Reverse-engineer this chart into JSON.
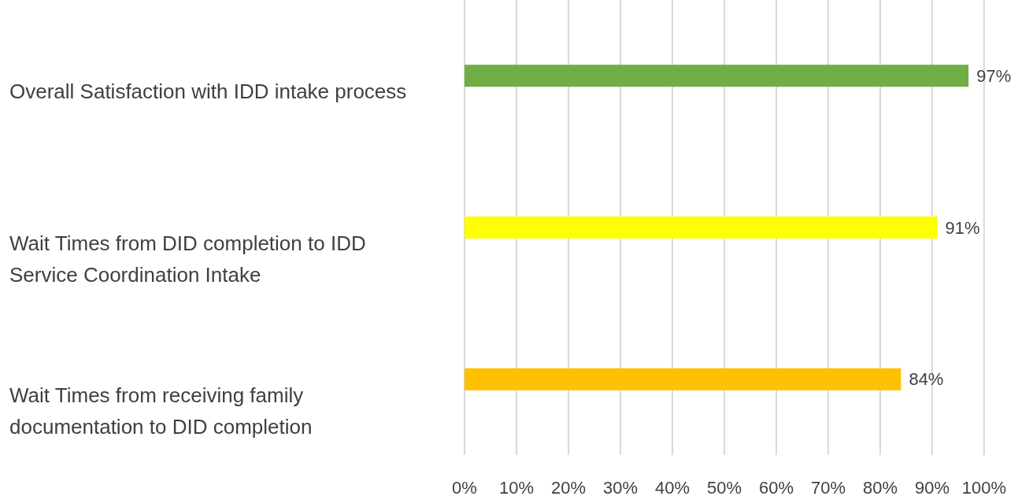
{
  "chart_data": {
    "type": "bar",
    "orientation": "horizontal",
    "categories": [
      "Overall Satisfaction with IDD intake process",
      "Wait Times from DID completion to IDD Service Coordination Intake",
      "Wait Times from receiving family documentation to DID completion"
    ],
    "values": [
      97,
      91,
      84
    ],
    "colors": [
      "#70ad47",
      "#ffff00",
      "#ffc000"
    ],
    "value_labels": [
      "97%",
      "91%",
      "84%"
    ],
    "xlim": [
      0,
      100
    ],
    "xticks": [
      {
        "value": 0,
        "label": "0%"
      },
      {
        "value": 10,
        "label": "10%"
      },
      {
        "value": 20,
        "label": "20%"
      },
      {
        "value": 30,
        "label": "30%"
      },
      {
        "value": 40,
        "label": "40%"
      },
      {
        "value": 50,
        "label": "50%"
      },
      {
        "value": 60,
        "label": "60%"
      },
      {
        "value": 70,
        "label": "70%"
      },
      {
        "value": 80,
        "label": "80%"
      },
      {
        "value": 90,
        "label": "90%"
      },
      {
        "value": 100,
        "label": "100%"
      }
    ],
    "grid": "x"
  }
}
